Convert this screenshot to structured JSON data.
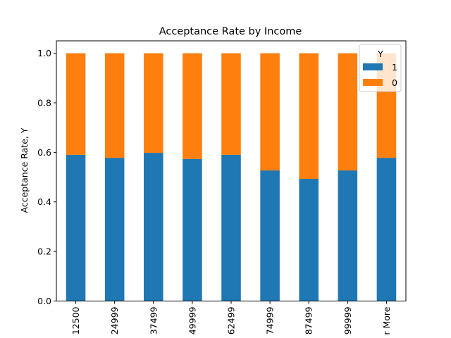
{
  "chart_data": {
    "type": "bar",
    "stacked": true,
    "title": "Acceptance Rate by Income",
    "xlabel": "",
    "ylabel": "Acceptance Rate, Y",
    "ylim": [
      0,
      1.05
    ],
    "yticks": [
      "0.0",
      "0.2",
      "0.4",
      "0.6",
      "0.8",
      "1.0"
    ],
    "categories": [
      "12500",
      "24999",
      "37499",
      "49999",
      "62499",
      "74999",
      "87499",
      "99999",
      "r More"
    ],
    "series": [
      {
        "name": "1",
        "color": "#1f77b4",
        "values": [
          0.59,
          0.578,
          0.598,
          0.573,
          0.59,
          0.527,
          0.493,
          0.527,
          0.578
        ]
      },
      {
        "name": "0",
        "color": "#ff7f0e",
        "values": [
          0.41,
          0.422,
          0.402,
          0.427,
          0.41,
          0.473,
          0.507,
          0.473,
          0.422
        ]
      }
    ],
    "legend": {
      "title": "Y",
      "placement": "top-right"
    },
    "grid": false
  }
}
